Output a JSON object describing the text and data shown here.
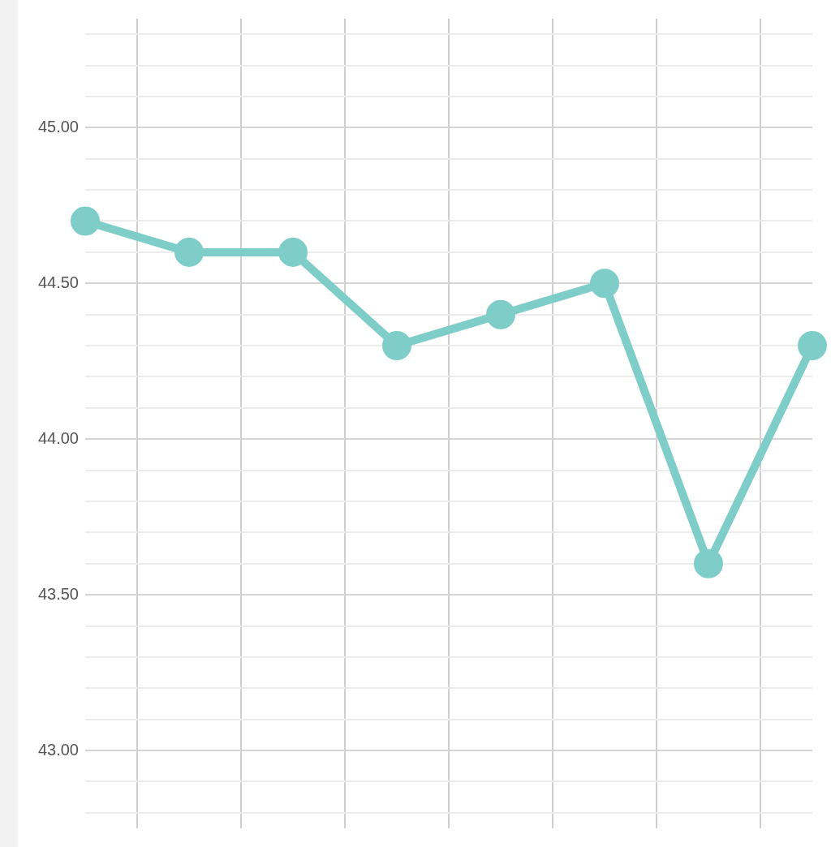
{
  "chart_data": {
    "type": "line",
    "categories": [
      null,
      null,
      null,
      null,
      null,
      null,
      null,
      null
    ],
    "series": [
      {
        "color": "#7ecdc9",
        "values": [
          44.7,
          44.6,
          44.6,
          44.3,
          44.4,
          44.5,
          43.6,
          44.3
        ]
      }
    ],
    "ylim": [
      42.75,
      45.35
    ],
    "yticks": [
      {
        "value": 42.8,
        "label": null
      },
      {
        "value": 42.9,
        "label": null
      },
      {
        "value": 43,
        "label": "43.00"
      },
      {
        "value": 43.1,
        "label": null
      },
      {
        "value": 43.2,
        "label": null
      },
      {
        "value": 43.3,
        "label": null
      },
      {
        "value": 43.4,
        "label": null
      },
      {
        "value": 43.5,
        "label": "43.50"
      },
      {
        "value": 43.6,
        "label": null
      },
      {
        "value": 43.7,
        "label": null
      },
      {
        "value": 43.8,
        "label": null
      },
      {
        "value": 43.9,
        "label": null
      },
      {
        "value": 44,
        "label": "44.00"
      },
      {
        "value": 44.1,
        "label": null
      },
      {
        "value": 44.2,
        "label": null
      },
      {
        "value": 44.3,
        "label": null
      },
      {
        "value": 44.4,
        "label": null
      },
      {
        "value": 44.5,
        "label": "44.50"
      },
      {
        "value": 44.6,
        "label": null
      },
      {
        "value": 44.7,
        "label": null
      },
      {
        "value": 44.8,
        "label": null
      },
      {
        "value": 44.9,
        "label": null
      },
      {
        "value": 45,
        "label": "45.00"
      },
      {
        "value": 45.1,
        "label": null
      },
      {
        "value": 45.2,
        "label": null
      },
      {
        "value": 45.3,
        "label": null
      }
    ],
    "tick_labels": "y",
    "grid": true,
    "marker": "circle",
    "line_style": "solid",
    "legend": false
  }
}
